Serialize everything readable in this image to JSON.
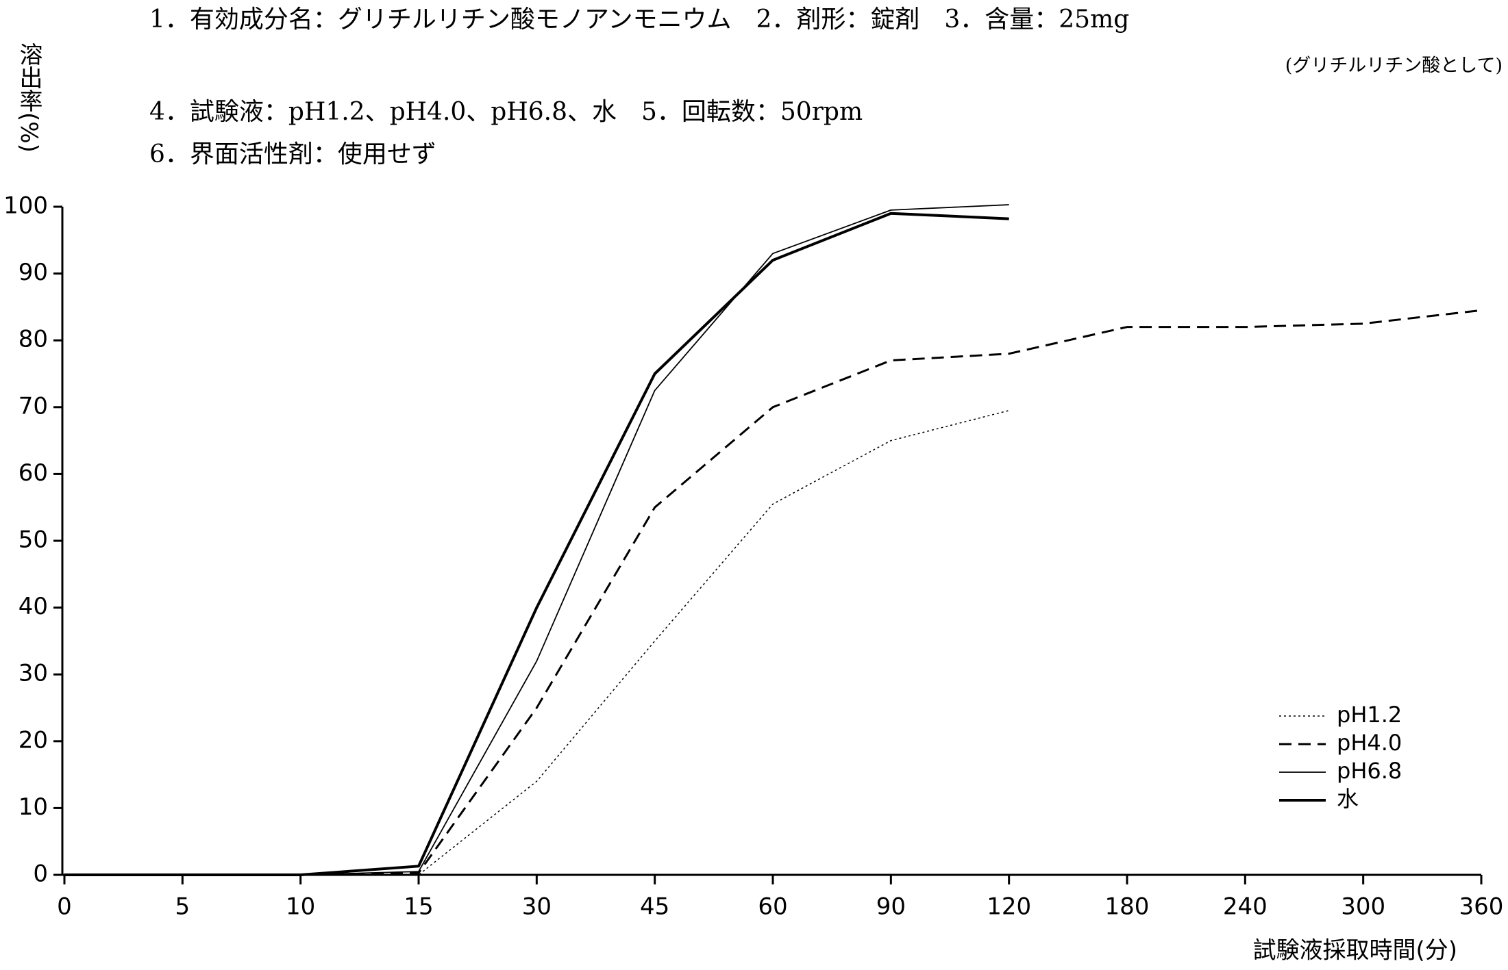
{
  "chart_data": {
    "type": "line",
    "title": "1．有効成分名：グリチルリチン酸モノアンモニウム　2．剤形：錠剤　3．含量：25mg",
    "subtitle": "(グリチルリチン酸として)",
    "annotations": [
      "4．試験液：pH1.2、pH4.0、pH6.8、水　5．回転数：50rpm",
      "6．界面活性剤：使用せず"
    ],
    "y_label": "溶出率(%)",
    "x_label": "試験液採取時間(分)",
    "categories": [
      "0",
      "5",
      "10",
      "15",
      "30",
      "45",
      "60",
      "90",
      "120",
      "180",
      "240",
      "300",
      "360"
    ],
    "series": [
      {
        "name": "pH1.2",
        "color": "#000000",
        "line_style": "dotted",
        "values": [
          0,
          0,
          0,
          0,
          14,
          35,
          55.5,
          65,
          69.5,
          null,
          null,
          null,
          null
        ]
      },
      {
        "name": "pH4.0",
        "color": "#000000",
        "line_style": "dashed",
        "values": [
          0,
          0,
          0,
          0.3,
          25,
          55,
          70,
          77,
          78,
          82,
          82,
          82.5,
          84.5
        ]
      },
      {
        "name": "pH6.8",
        "color": "#000000",
        "line_style": "thin",
        "values": [
          0,
          0,
          0,
          0.5,
          32,
          72.5,
          93,
          99.5,
          100.3,
          null,
          null,
          null,
          null
        ]
      },
      {
        "name": "水",
        "color": "#000000",
        "line_style": "thick",
        "values": [
          0,
          0,
          0,
          1.3,
          40,
          75,
          92,
          99,
          98.2,
          null,
          null,
          null,
          null
        ]
      }
    ],
    "ylim": [
      0,
      100
    ],
    "yticks": [
      0,
      10,
      20,
      30,
      40,
      50,
      60,
      70,
      80,
      90,
      100
    ],
    "legend": "lower right"
  }
}
